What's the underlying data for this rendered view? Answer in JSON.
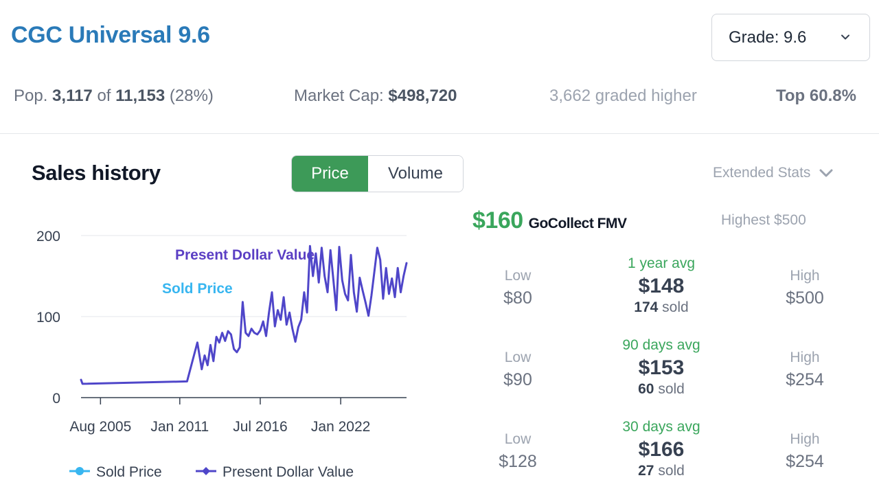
{
  "header": {
    "title": "CGC Universal 9.6",
    "grade_select": "Grade: 9.6"
  },
  "stats": {
    "pop_prefix": "Pop.",
    "pop_count": "3,117",
    "pop_of": "of",
    "pop_total": "11,153",
    "pop_pct": "(28%)",
    "market_cap_label": "Market Cap:",
    "market_cap_value": "$498,720",
    "graded_higher": "3,662 graded higher",
    "top_pct": "Top 60.8%"
  },
  "sales": {
    "title": "Sales history",
    "toggle": {
      "price": "Price",
      "volume": "Volume",
      "active": "Price"
    },
    "extended_stats": "Extended Stats"
  },
  "fmv": {
    "value": "$160",
    "label": "GoCollect FMV",
    "highest": "Highest $500"
  },
  "periods": [
    {
      "low_label": "Low",
      "low": "$80",
      "avg_label": "1 year avg",
      "avg": "$148",
      "sold_count": "174",
      "sold_word": "sold",
      "high_label": "High",
      "high": "$500"
    },
    {
      "low_label": "Low",
      "low": "$90",
      "avg_label": "90 days avg",
      "avg": "$153",
      "sold_count": "60",
      "sold_word": "sold",
      "high_label": "High",
      "high": "$254"
    },
    {
      "low_label": "Low",
      "low": "$128",
      "avg_label": "30 days avg",
      "avg": "$166",
      "sold_count": "27",
      "sold_word": "sold",
      "high_label": "High",
      "high": "$254"
    }
  ],
  "colors": {
    "title": "#2a7ab8",
    "green": "#3aa65c",
    "sold_price": "#38b6f0",
    "present_value": "#4f46c9",
    "present_value_label": "#5b3fc4"
  },
  "chart_data": {
    "type": "line",
    "ylim": [
      0,
      200
    ],
    "yticks": [
      "0",
      "100",
      "200"
    ],
    "xticks": [
      {
        "label": "Aug 2005",
        "x": 2005.58
      },
      {
        "label": "Jan 2011",
        "x": 2011.0
      },
      {
        "label": "Jul 2016",
        "x": 2016.5
      },
      {
        "label": "Jan 2022",
        "x": 2022.0
      }
    ],
    "xlim": [
      2004.25,
      2026.5
    ],
    "annotations": [
      "Present Dollar Value",
      "Sold Price"
    ],
    "series": [
      {
        "name": "Sold Price",
        "x": [],
        "values": []
      },
      {
        "name": "Present Dollar Value",
        "x": [
          2004.25,
          2004.35,
          2011.5,
          2012.2,
          2012.5,
          2012.7,
          2012.9,
          2013.1,
          2013.3,
          2013.5,
          2013.7,
          2013.9,
          2014.1,
          2014.3,
          2014.5,
          2014.7,
          2014.9,
          2015.1,
          2015.3,
          2015.5,
          2015.7,
          2015.9,
          2016.1,
          2016.3,
          2016.5,
          2016.7,
          2016.9,
          2017.1,
          2017.3,
          2017.5,
          2017.7,
          2017.9,
          2018.1,
          2018.3,
          2018.5,
          2018.7,
          2018.9,
          2019.1,
          2019.3,
          2019.5,
          2019.7,
          2019.9,
          2020.1,
          2020.3,
          2020.5,
          2020.7,
          2020.9,
          2021.1,
          2021.3,
          2021.5,
          2021.7,
          2021.9,
          2022.1,
          2022.3,
          2022.5,
          2022.7,
          2022.9,
          2023.1,
          2023.3,
          2023.5,
          2023.7,
          2023.9,
          2024.1,
          2024.3,
          2024.5,
          2024.7,
          2024.9,
          2025.1,
          2025.3,
          2025.5,
          2025.7,
          2025.9,
          2026.1,
          2026.3,
          2026.5
        ],
        "values": [
          22,
          17,
          20,
          68,
          35,
          52,
          40,
          65,
          45,
          75,
          68,
          80,
          70,
          82,
          78,
          60,
          56,
          62,
          118,
          80,
          76,
          85,
          80,
          78,
          83,
          94,
          76,
          105,
          130,
          88,
          108,
          96,
          124,
          90,
          105,
          85,
          69,
          87,
          96,
          130,
          105,
          187,
          150,
          178,
          142,
          185,
          150,
          130,
          182,
          145,
          108,
          186,
          145,
          128,
          120,
          176,
          130,
          106,
          148,
          132,
          117,
          101,
          126,
          155,
          185,
          170,
          122,
          160,
          128,
          147,
          124,
          160,
          130,
          150,
          166
        ]
      }
    ],
    "legend": [
      "Sold Price",
      "Present Dollar Value"
    ],
    "legend_position": "bottom"
  }
}
